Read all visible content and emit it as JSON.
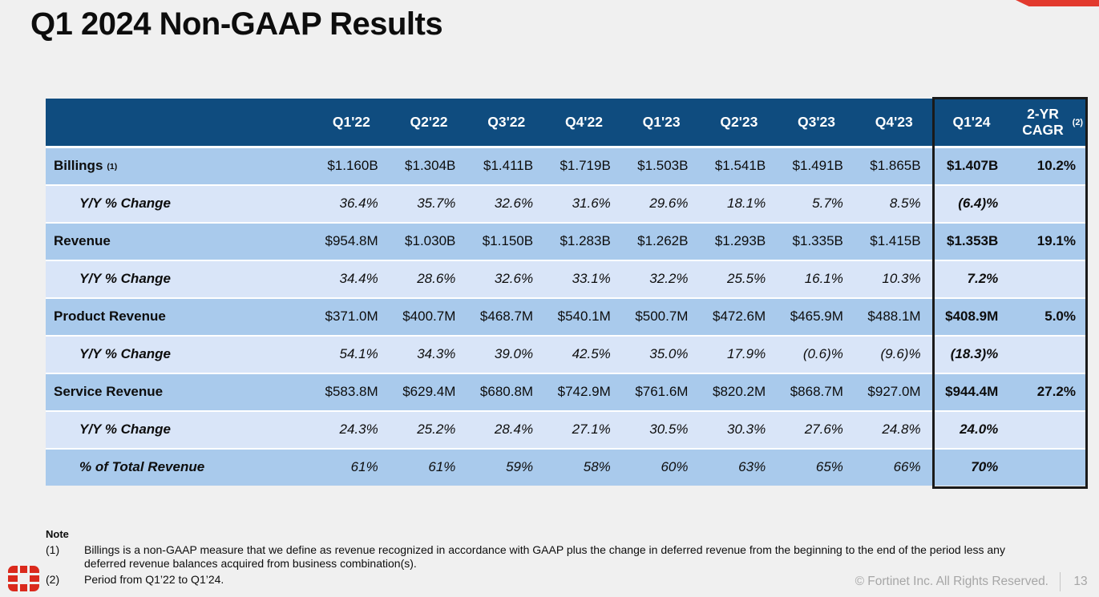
{
  "page": {
    "title": "Q1 2024 Non-GAAP Results",
    "copyright": "© Fortinet Inc. All Rights Reserved.",
    "page_number": "13"
  },
  "colors": {
    "header_bg": "#0F4C7F",
    "row_main_bg": "#A9CAEC",
    "row_alt_bg": "#D9E5F8",
    "highlight_border": "#1A1A1A",
    "accent_red": "#E23A2E",
    "logo_red": "#DA291C",
    "footer_gray": "#A6A6A6",
    "background": "#F0F0F0"
  },
  "icons": {
    "logo": "fortinet-logo-icon"
  },
  "table": {
    "columns": [
      "",
      "Q1'22",
      "Q2'22",
      "Q3'22",
      "Q4'22",
      "Q1'23",
      "Q2'23",
      "Q3'23",
      "Q4'23",
      "Q1'24",
      "2-YR CAGR"
    ],
    "cagr_superscript": "(2)",
    "rows": [
      {
        "label": "Billings",
        "label_superscript": "(1)",
        "type": "main",
        "values": [
          "$1.160B",
          "$1.304B",
          "$1.411B",
          "$1.719B",
          "$1.503B",
          "$1.541B",
          "$1.491B",
          "$1.865B",
          "$1.407B",
          "10.2%"
        ]
      },
      {
        "label": "Y/Y % Change",
        "type": "sub",
        "values": [
          "36.4%",
          "35.7%",
          "32.6%",
          "31.6%",
          "29.6%",
          "18.1%",
          "5.7%",
          "8.5%",
          "(6.4)%",
          ""
        ]
      },
      {
        "label": "Revenue",
        "type": "main",
        "values": [
          "$954.8M",
          "$1.030B",
          "$1.150B",
          "$1.283B",
          "$1.262B",
          "$1.293B",
          "$1.335B",
          "$1.415B",
          "$1.353B",
          "19.1%"
        ]
      },
      {
        "label": "Y/Y % Change",
        "type": "sub",
        "values": [
          "34.4%",
          "28.6%",
          "32.6%",
          "33.1%",
          "32.2%",
          "25.5%",
          "16.1%",
          "10.3%",
          "7.2%",
          ""
        ]
      },
      {
        "label": "Product Revenue",
        "type": "main",
        "values": [
          "$371.0M",
          "$400.7M",
          "$468.7M",
          "$540.1M",
          "$500.7M",
          "$472.6M",
          "$465.9M",
          "$488.1M",
          "$408.9M",
          "5.0%"
        ]
      },
      {
        "label": "Y/Y % Change",
        "type": "sub",
        "values": [
          "54.1%",
          "34.3%",
          "39.0%",
          "42.5%",
          "35.0%",
          "17.9%",
          "(0.6)%",
          "(9.6)%",
          "(18.3)%",
          ""
        ]
      },
      {
        "label": "Service Revenue",
        "type": "main",
        "values": [
          "$583.8M",
          "$629.4M",
          "$680.8M",
          "$742.9M",
          "$761.6M",
          "$820.2M",
          "$868.7M",
          "$927.0M",
          "$944.4M",
          "27.2%"
        ]
      },
      {
        "label": "Y/Y % Change",
        "type": "sub",
        "values": [
          "24.3%",
          "25.2%",
          "28.4%",
          "27.1%",
          "30.5%",
          "30.3%",
          "27.6%",
          "24.8%",
          "24.0%",
          ""
        ]
      },
      {
        "label": "% of Total Revenue",
        "type": "submain",
        "values": [
          "61%",
          "61%",
          "59%",
          "58%",
          "60%",
          "63%",
          "65%",
          "66%",
          "70%",
          ""
        ]
      }
    ]
  },
  "notes": {
    "heading": "Note",
    "items": [
      {
        "marker": "(1)",
        "text": "Billings is a non-GAAP measure that we define as revenue recognized in accordance with GAAP plus the change in deferred revenue from the beginning to the end of the period less any deferred revenue balances acquired from business combination(s)."
      },
      {
        "marker": "(2)",
        "text": "Period from Q1’22 to Q1’24."
      }
    ]
  }
}
